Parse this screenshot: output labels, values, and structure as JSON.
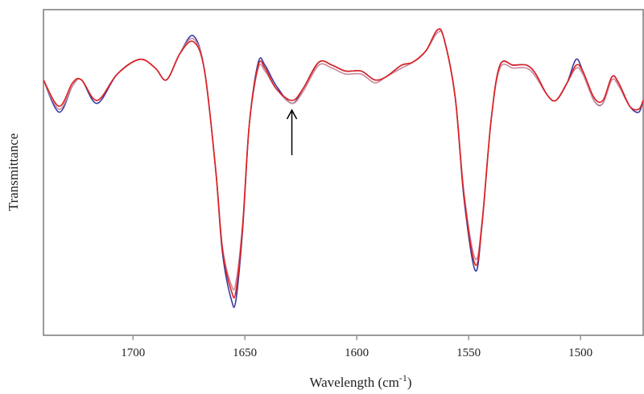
{
  "chart_data": {
    "type": "line",
    "xlabel": "Wavelength (cm",
    "xlabel_sup": "-1",
    "xlabel_close": ")",
    "ylabel": "Transmittance",
    "xlim": [
      1740,
      1472
    ],
    "ylim": [
      0,
      1
    ],
    "x_reversed": true,
    "grid": false,
    "x_ticks": [
      1700,
      1650,
      1600,
      1550,
      1500
    ],
    "x_tick_labels": [
      "1700",
      "1650",
      "1600",
      "1550",
      "1500"
    ],
    "annotation": {
      "type": "arrow",
      "x": 1629,
      "direction": "up"
    },
    "series": [
      {
        "color": "#3a3aa0",
        "x": [
          1740,
          1733,
          1727,
          1723,
          1716,
          1707,
          1697,
          1690,
          1685,
          1679,
          1673,
          1668,
          1663,
          1660,
          1656,
          1654,
          1651,
          1648,
          1644,
          1641,
          1636,
          1629,
          1624,
          1617,
          1611,
          1605,
          1598,
          1592,
          1587,
          1580,
          1575,
          1569,
          1564,
          1561,
          1556,
          1552,
          1547,
          1544,
          1540,
          1536,
          1530,
          1524,
          1520,
          1515,
          1511,
          1506,
          1502,
          1499,
          1494,
          1490,
          1486,
          1483,
          1478,
          1474,
          1472
        ],
        "y": [
          0.81,
          0.7,
          0.79,
          0.81,
          0.73,
          0.83,
          0.88,
          0.85,
          0.81,
          0.9,
          0.96,
          0.84,
          0.5,
          0.22,
          0.06,
          0.06,
          0.3,
          0.66,
          0.87,
          0.86,
          0.79,
          0.73,
          0.78,
          0.87,
          0.86,
          0.84,
          0.84,
          0.81,
          0.82,
          0.86,
          0.87,
          0.91,
          0.98,
          0.95,
          0.75,
          0.4,
          0.16,
          0.32,
          0.67,
          0.86,
          0.86,
          0.86,
          0.83,
          0.76,
          0.74,
          0.8,
          0.88,
          0.84,
          0.74,
          0.73,
          0.82,
          0.8,
          0.72,
          0.7,
          0.74
        ]
      },
      {
        "color": "#c88a9e",
        "x": [
          1740,
          1733,
          1727,
          1723,
          1716,
          1707,
          1697,
          1690,
          1685,
          1679,
          1673,
          1668,
          1663,
          1660,
          1656,
          1654,
          1651,
          1648,
          1644,
          1641,
          1636,
          1629,
          1624,
          1617,
          1611,
          1605,
          1598,
          1592,
          1587,
          1580,
          1575,
          1569,
          1564,
          1561,
          1556,
          1552,
          1547,
          1544,
          1540,
          1536,
          1530,
          1524,
          1520,
          1515,
          1511,
          1506,
          1502,
          1499,
          1494,
          1490,
          1486,
          1483,
          1478,
          1474,
          1472
        ],
        "y": [
          0.81,
          0.71,
          0.79,
          0.81,
          0.74,
          0.83,
          0.88,
          0.85,
          0.81,
          0.9,
          0.95,
          0.84,
          0.5,
          0.24,
          0.11,
          0.12,
          0.32,
          0.66,
          0.85,
          0.84,
          0.78,
          0.73,
          0.77,
          0.86,
          0.85,
          0.83,
          0.83,
          0.8,
          0.82,
          0.85,
          0.87,
          0.91,
          0.97,
          0.95,
          0.75,
          0.42,
          0.2,
          0.33,
          0.67,
          0.85,
          0.85,
          0.85,
          0.82,
          0.76,
          0.74,
          0.8,
          0.85,
          0.83,
          0.74,
          0.73,
          0.81,
          0.79,
          0.72,
          0.71,
          0.74
        ]
      },
      {
        "color": "#e02020",
        "x": [
          1740,
          1733,
          1727,
          1723,
          1716,
          1707,
          1697,
          1690,
          1685,
          1679,
          1673,
          1668,
          1663,
          1660,
          1656,
          1654,
          1651,
          1648,
          1644,
          1641,
          1636,
          1629,
          1624,
          1617,
          1611,
          1605,
          1598,
          1592,
          1587,
          1580,
          1575,
          1569,
          1564,
          1561,
          1556,
          1552,
          1547,
          1544,
          1540,
          1536,
          1530,
          1524,
          1520,
          1515,
          1511,
          1506,
          1502,
          1499,
          1494,
          1490,
          1486,
          1483,
          1478,
          1474,
          1472
        ],
        "y": [
          0.81,
          0.72,
          0.8,
          0.81,
          0.74,
          0.83,
          0.88,
          0.85,
          0.81,
          0.9,
          0.94,
          0.84,
          0.5,
          0.23,
          0.09,
          0.09,
          0.31,
          0.66,
          0.86,
          0.85,
          0.78,
          0.74,
          0.78,
          0.87,
          0.86,
          0.84,
          0.84,
          0.81,
          0.82,
          0.86,
          0.87,
          0.91,
          0.98,
          0.95,
          0.75,
          0.41,
          0.18,
          0.32,
          0.67,
          0.86,
          0.86,
          0.86,
          0.83,
          0.76,
          0.74,
          0.8,
          0.86,
          0.84,
          0.75,
          0.74,
          0.82,
          0.8,
          0.72,
          0.71,
          0.74
        ]
      }
    ]
  }
}
